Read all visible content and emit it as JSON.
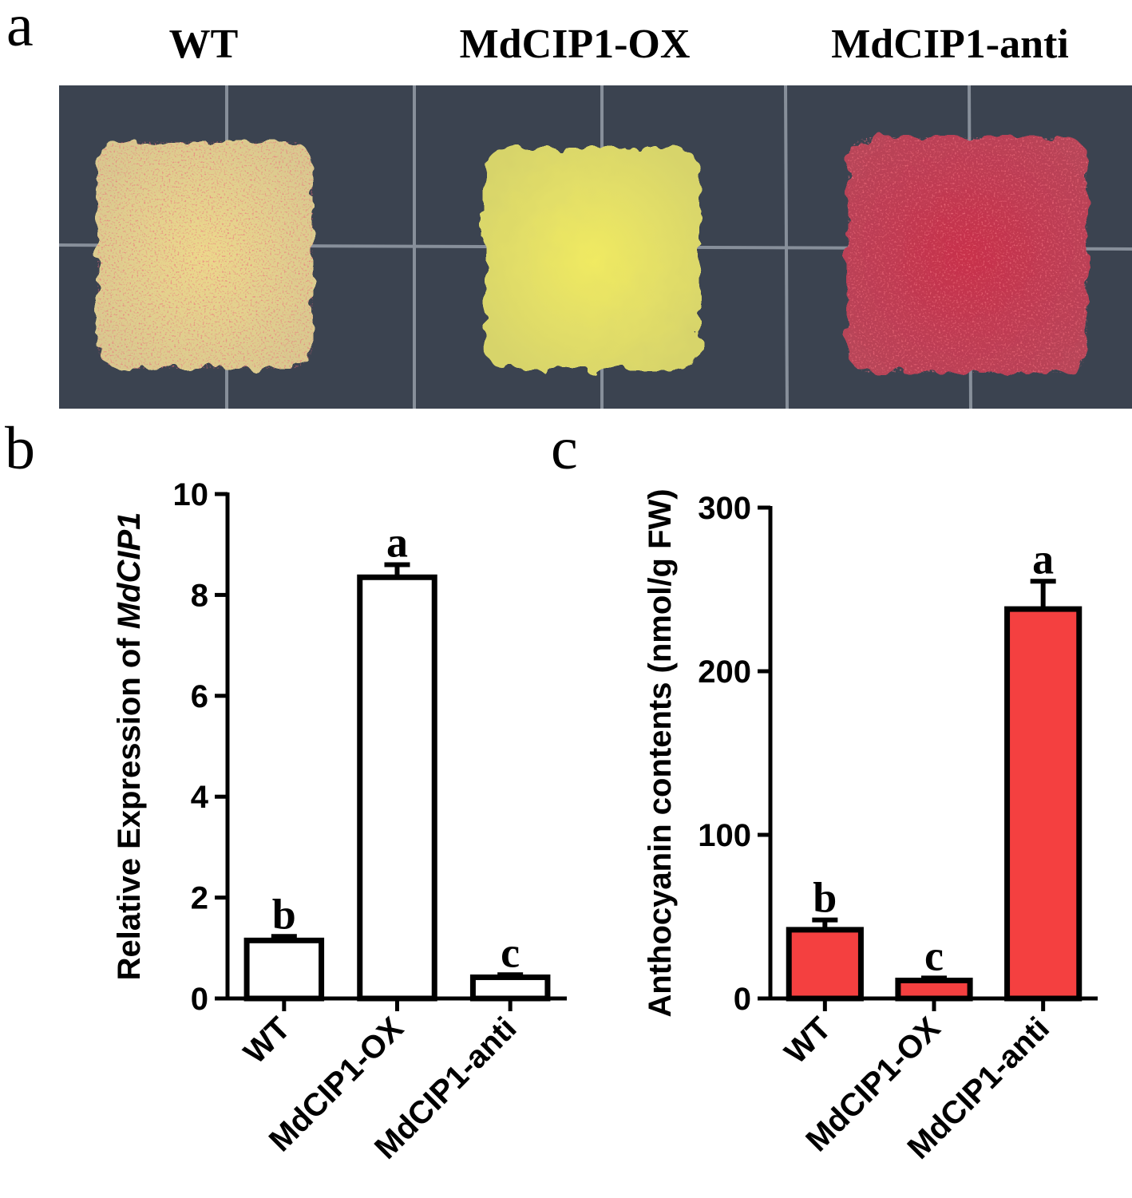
{
  "panels": {
    "a": "a",
    "b": "b",
    "c": "c"
  },
  "photo_titles": [
    "WT",
    "MdCIP1-OX",
    "MdCIP1-anti"
  ],
  "colors": {
    "bar_b_fill": "#ffffff",
    "bar_c_fill": "#f44040",
    "callus_wt": "#e8d58a",
    "callus_ox": "#e9e35a",
    "callus_anti": "#c43650",
    "tray": "#3b4350"
  },
  "chart_data": [
    {
      "type": "bar",
      "panel": "b",
      "categories": [
        "WT",
        "MdCIP1-OX",
        "MdCIP1-anti"
      ],
      "values": [
        1.15,
        8.35,
        0.42
      ],
      "errors": [
        0.08,
        0.25,
        0.05
      ],
      "significance": [
        "b",
        "a",
        "c"
      ],
      "ylabel_prefix": "Relative Expression of ",
      "ylabel_gene": "MdCIP1",
      "ylim": [
        0,
        10
      ],
      "yticks": [
        "0",
        "2",
        "4",
        "6",
        "8",
        "10"
      ]
    },
    {
      "type": "bar",
      "panel": "c",
      "categories": [
        "WT",
        "MdCIP1-OX",
        "MdCIP1-anti"
      ],
      "values": [
        42,
        11,
        238
      ],
      "errors": [
        6,
        1.5,
        17
      ],
      "significance": [
        "b",
        "c",
        "a"
      ],
      "ylabel": "Anthocyanin contents (nmol/g FW)",
      "ylim": [
        0,
        300
      ],
      "yticks": [
        "0",
        "100",
        "200",
        "300"
      ]
    }
  ]
}
